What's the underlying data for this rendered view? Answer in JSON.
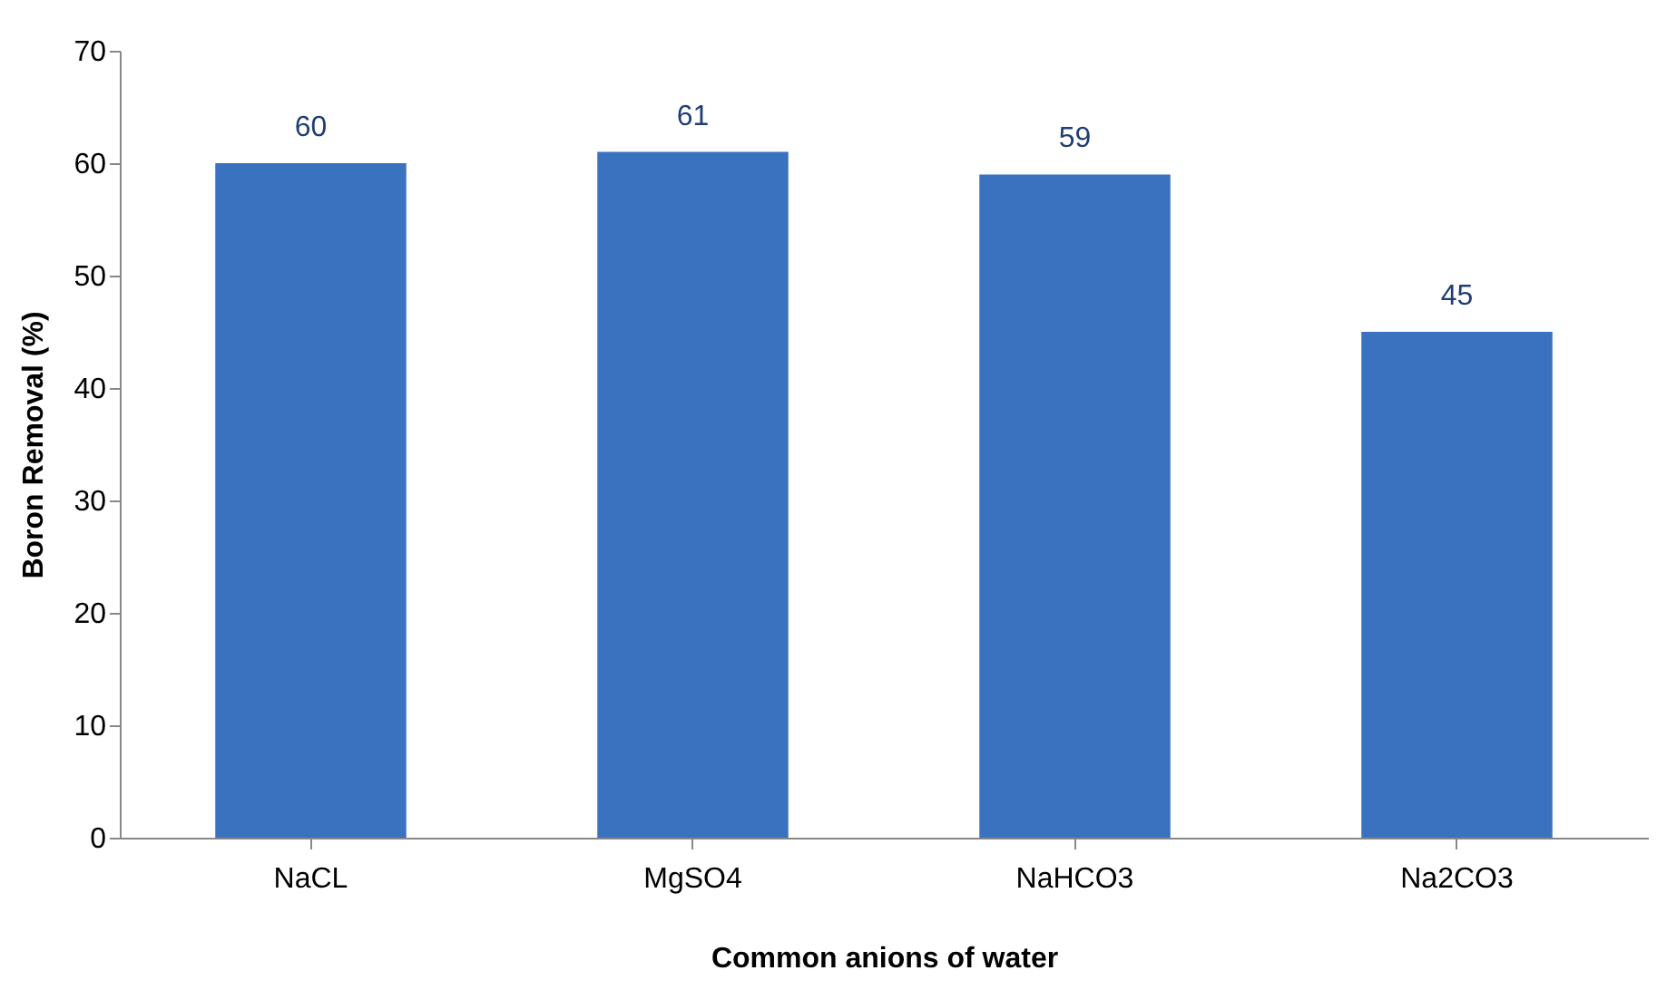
{
  "chart_data": {
    "type": "bar",
    "xlabel": "Common anions of water",
    "ylabel": "Boron Removal (%)",
    "categories": [
      "NaCL",
      "MgSO4",
      "NaHCO3",
      "Na2CO3"
    ],
    "values": [
      60,
      61,
      59,
      45
    ],
    "color": "#3a72c0",
    "ylim": [
      0,
      70
    ],
    "yticks": [
      0,
      10,
      20,
      30,
      40,
      50,
      60,
      70
    ],
    "grid": false,
    "data_labels": true
  }
}
